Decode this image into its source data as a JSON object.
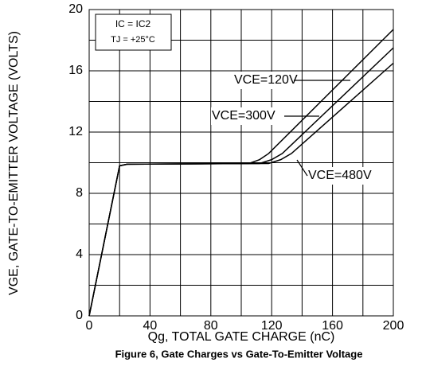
{
  "chart_data": {
    "type": "line",
    "title": "Figure 6, Gate Charges vs Gate-To-Emitter Voltage",
    "x_label": "Qg, TOTAL GATE CHARGE (nC)",
    "y_label": "VGE, GATE-TO-EMITTER VOLTAGE (VOLTS)",
    "annotations": [
      "IC = IC2",
      "TJ = +25°C"
    ],
    "xlim": [
      0,
      200
    ],
    "ylim": [
      0,
      20
    ],
    "xticks": [
      0,
      40,
      80,
      120,
      160,
      200
    ],
    "yticks": [
      0,
      4,
      8,
      12,
      16,
      20
    ],
    "xminor_ticks": [
      20,
      60,
      100,
      140,
      180
    ],
    "yminor_ticks": [
      2,
      6,
      10,
      14,
      18
    ],
    "grid": true,
    "series": [
      {
        "name": "VCE=120V",
        "color": "#000000",
        "x": [
          0,
          20,
          25,
          105,
          112,
          118,
          200
        ],
        "values": [
          0,
          9.8,
          9.9,
          9.95,
          10.2,
          10.6,
          18.7
        ]
      },
      {
        "name": "VCE=300V",
        "color": "#000000",
        "x": [
          0,
          20,
          25,
          112,
          120,
          127,
          200
        ],
        "values": [
          0,
          9.8,
          9.9,
          9.95,
          10.2,
          10.6,
          17.5
        ]
      },
      {
        "name": "VCE=480V",
        "color": "#000000",
        "x": [
          0,
          20,
          25,
          118,
          126,
          133,
          200
        ],
        "values": [
          0,
          9.8,
          9.9,
          9.95,
          10.2,
          10.6,
          16.5
        ]
      }
    ]
  }
}
